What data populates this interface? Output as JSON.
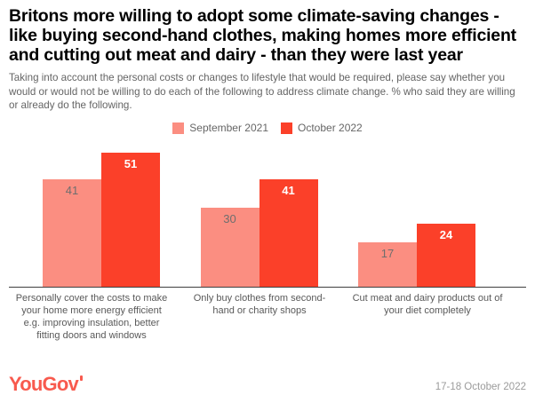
{
  "header": {
    "title": "Britons more willing to adopt some climate-saving changes - like buying second-hand clothes, making homes more efficient and cutting out meat and dairy - than they were last year",
    "subtitle": "Taking into account the personal costs or changes to lifestyle that would be required, please say whether you would or would not be willing to do each of the following to address climate change. % who said they are willing or already do the following."
  },
  "chart_data": {
    "type": "bar",
    "title": "Britons more willing to adopt some climate-saving changes - like buying second-hand clothes, making homes more efficient and cutting out meat and dairy - than they were last year",
    "categories": [
      "Personally cover the costs to make your home more energy efficient e.g. improving insulation, better fitting doors and windows",
      "Only buy clothes from second-hand or charity shops",
      "Cut meat and dairy products out of your diet completely"
    ],
    "series": [
      {
        "name": "September 2021",
        "color": "#fb8e81",
        "values": [
          41,
          30,
          17
        ]
      },
      {
        "name": "October 2022",
        "color": "#fb4029",
        "values": [
          51,
          41,
          24
        ]
      }
    ],
    "xlabel": "",
    "ylabel": "",
    "ylim": [
      0,
      54
    ],
    "grid": false,
    "legend_position": "top-center",
    "value_labels": "inside-top"
  },
  "footer": {
    "logo": "YouGov",
    "date": "17-18 October 2022"
  },
  "colors": {
    "september_2021": "#fb8e81",
    "october_2022": "#fb4029",
    "logo": "#f85a4e",
    "axis_line": "#3f3f3f",
    "title_text": "#000000",
    "subtitle_text": "#646464",
    "category_text": "#595959",
    "date_text": "#9b9b9b",
    "value_label_on_light": "#6e6e6e",
    "value_label_on_dark": "#ffffff"
  }
}
